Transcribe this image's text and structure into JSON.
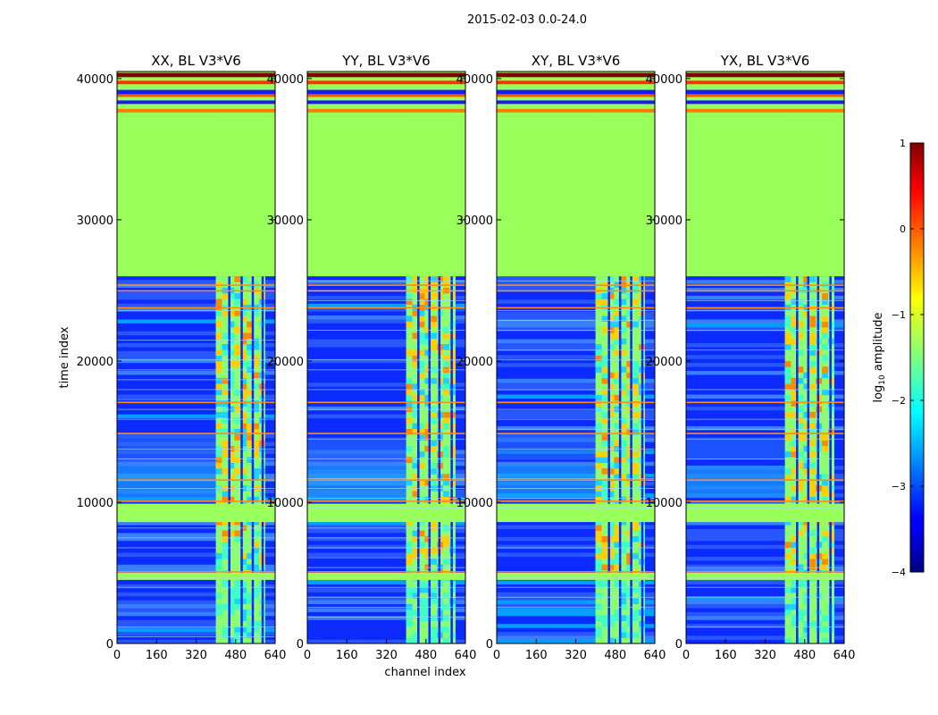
{
  "figure": {
    "suptitle": "2015-02-03 0.0-24.0"
  },
  "chart_data": [
    {
      "type": "heatmap",
      "title": "XX, BL V3*V6",
      "xlabel": "",
      "ylabel": "time index",
      "xlim": [
        0,
        640
      ],
      "ylim": [
        0,
        40500
      ],
      "xticks": [
        "0",
        "160",
        "320",
        "480",
        "640"
      ],
      "yticks": [
        "0",
        "10000",
        "20000",
        "30000",
        "40000"
      ],
      "band_channels": [
        400,
        600
      ],
      "band_gaps": [
        450,
        500,
        545,
        585
      ]
    },
    {
      "type": "heatmap",
      "title": "YY, BL V3*V6",
      "xlabel": "channel index",
      "ylabel": "",
      "xlim": [
        0,
        640
      ],
      "ylim": [
        0,
        40500
      ],
      "xticks": [
        "0",
        "160",
        "320",
        "480",
        "640"
      ],
      "yticks": [
        "0",
        "10000",
        "20000",
        "30000",
        "40000"
      ],
      "band_channels": [
        400,
        600
      ],
      "band_gaps": [
        445,
        490,
        530,
        580
      ]
    },
    {
      "type": "heatmap",
      "title": "XY, BL V3*V6",
      "xlabel": "",
      "ylabel": "",
      "xlim": [
        0,
        640
      ],
      "ylim": [
        0,
        40500
      ],
      "xticks": [
        "0",
        "160",
        "320",
        "480",
        "640"
      ],
      "yticks": [
        "0",
        "10000",
        "20000",
        "30000",
        "40000"
      ],
      "band_channels": [
        400,
        600
      ],
      "band_gaps": [
        450,
        495,
        540,
        585
      ]
    },
    {
      "type": "heatmap",
      "title": "YX, BL V3*V6",
      "xlabel": "",
      "ylabel": "",
      "xlim": [
        0,
        640
      ],
      "ylim": [
        0,
        40500
      ],
      "xticks": [
        "0",
        "160",
        "320",
        "480",
        "640"
      ],
      "yticks": [
        "0",
        "10000",
        "20000",
        "30000",
        "40000"
      ],
      "band_channels": [
        400,
        600
      ],
      "band_gaps": [
        445,
        490,
        530,
        580
      ]
    }
  ],
  "rows": {
    "flagged_block": [
      26000,
      37300
    ],
    "flagged_band_1": [
      8600,
      9900
    ],
    "flagged_band_2": [
      4500,
      5000
    ],
    "orange_lines": [
      24900,
      25300,
      23700,
      17000,
      14800,
      11500,
      10000,
      5000
    ],
    "top_stripes": [
      37600,
      38200,
      38700,
      39600,
      40100
    ]
  },
  "colorbar": {
    "label": "log10 amplitude",
    "label_main": "log",
    "label_sub": "10",
    "label_rest": " amplitude",
    "range": [
      -4,
      1
    ],
    "ticks": [
      "1",
      "0",
      "−1",
      "−2",
      "−3",
      "−4"
    ],
    "colormap": "jet"
  }
}
